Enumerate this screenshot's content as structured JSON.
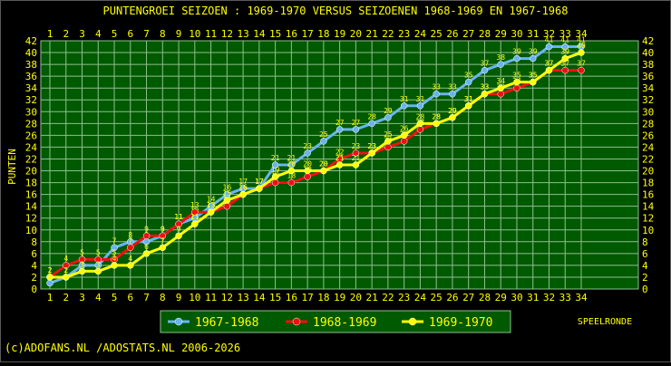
{
  "chart_data": {
    "type": "line",
    "title": "PUNTENGROEI  SEIZOEN : 1969-1970 VERSUS SEIZOENEN 1968-1969 EN 1967-1968",
    "ylabel": "PUNTEN",
    "xlabel": "SPEELRONDE",
    "xlim": [
      1,
      34
    ],
    "ylim": [
      0,
      42
    ],
    "grid": true,
    "legend_position": "bottom-left",
    "x": [
      1,
      2,
      3,
      4,
      5,
      6,
      7,
      8,
      9,
      10,
      11,
      12,
      13,
      14,
      15,
      16,
      17,
      18,
      19,
      20,
      21,
      22,
      23,
      24,
      25,
      26,
      27,
      28,
      29,
      30,
      31,
      32,
      33,
      34
    ],
    "y_ticks": [
      0,
      2,
      4,
      6,
      8,
      10,
      12,
      14,
      16,
      18,
      20,
      22,
      24,
      26,
      28,
      30,
      32,
      34,
      36,
      38,
      40,
      42
    ],
    "series": [
      {
        "name": "1967-1968",
        "color": "#6ab4ee",
        "values": [
          1,
          2,
          4,
          4,
          7,
          8,
          8,
          9,
          11,
          12,
          14,
          16,
          17,
          17,
          21,
          21,
          23,
          25,
          27,
          27,
          28,
          29,
          31,
          31,
          33,
          33,
          35,
          37,
          38,
          39,
          39,
          41,
          41,
          41
        ]
      },
      {
        "name": "1968-1969",
        "color": "#ee1111",
        "values": [
          2,
          4,
          5,
          5,
          5,
          7,
          9,
          9,
          11,
          13,
          13,
          14,
          16,
          17,
          18,
          18,
          19,
          20,
          22,
          23,
          23,
          24,
          25,
          27,
          28,
          29,
          31,
          33,
          33,
          34,
          35,
          37,
          37,
          37
        ]
      },
      {
        "name": "1969-1970",
        "color": "#ffff00",
        "values": [
          2,
          2,
          3,
          3,
          4,
          4,
          6,
          7,
          9,
          11,
          13,
          15,
          16,
          17,
          19,
          20,
          20,
          20,
          21,
          21,
          23,
          25,
          26,
          28,
          28,
          29,
          31,
          33,
          34,
          35,
          35,
          37,
          39,
          40
        ]
      }
    ]
  },
  "footer": {
    "copyright": "(c)ADOFANS.NL /ADOSTATS.NL 2006-2026"
  },
  "colors": {
    "plot_bg": "#005a00",
    "grid": "#8fbf8f",
    "text": "#ffff00"
  }
}
